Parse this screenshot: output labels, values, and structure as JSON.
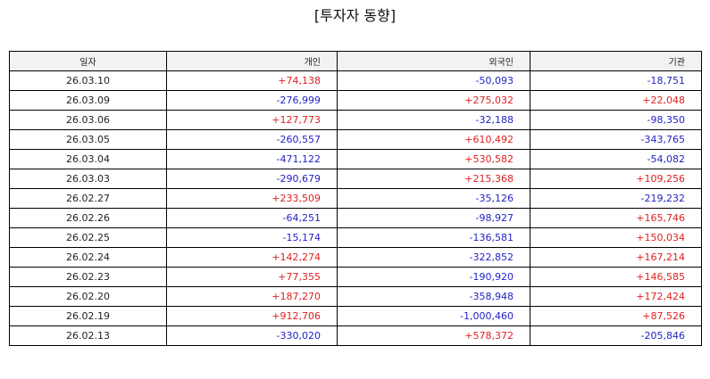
{
  "page": {
    "title": "[투자자 동향]"
  },
  "colors": {
    "positive": "#e02020",
    "negative": "#2323c8"
  },
  "table": {
    "headers": {
      "date": "일자",
      "individual": "개인",
      "foreign": "외국인",
      "institution": "기관"
    },
    "rows": [
      {
        "date": "26.03.10",
        "individual": "+74,138",
        "foreign": "-50,093",
        "institution": "-18,751"
      },
      {
        "date": "26.03.09",
        "individual": "-276,999",
        "foreign": "+275,032",
        "institution": "+22,048"
      },
      {
        "date": "26.03.06",
        "individual": "+127,773",
        "foreign": "-32,188",
        "institution": "-98,350"
      },
      {
        "date": "26.03.05",
        "individual": "-260,557",
        "foreign": "+610,492",
        "institution": "-343,765"
      },
      {
        "date": "26.03.04",
        "individual": "-471,122",
        "foreign": "+530,582",
        "institution": "-54,082"
      },
      {
        "date": "26.03.03",
        "individual": "-290,679",
        "foreign": "+215,368",
        "institution": "+109,256"
      },
      {
        "date": "26.02.27",
        "individual": "+233,509",
        "foreign": "-35,126",
        "institution": "-219,232"
      },
      {
        "date": "26.02.26",
        "individual": "-64,251",
        "foreign": "-98,927",
        "institution": "+165,746"
      },
      {
        "date": "26.02.25",
        "individual": "-15,174",
        "foreign": "-136,581",
        "institution": "+150,034"
      },
      {
        "date": "26.02.24",
        "individual": "+142,274",
        "foreign": "-322,852",
        "institution": "+167,214"
      },
      {
        "date": "26.02.23",
        "individual": "+77,355",
        "foreign": "-190,920",
        "institution": "+146,585"
      },
      {
        "date": "26.02.20",
        "individual": "+187,270",
        "foreign": "-358,948",
        "institution": "+172,424"
      },
      {
        "date": "26.02.19",
        "individual": "+912,706",
        "foreign": "-1,000,460",
        "institution": "+87,526"
      },
      {
        "date": "26.02.13",
        "individual": "-330,020",
        "foreign": "+578,372",
        "institution": "-205,846"
      }
    ]
  }
}
